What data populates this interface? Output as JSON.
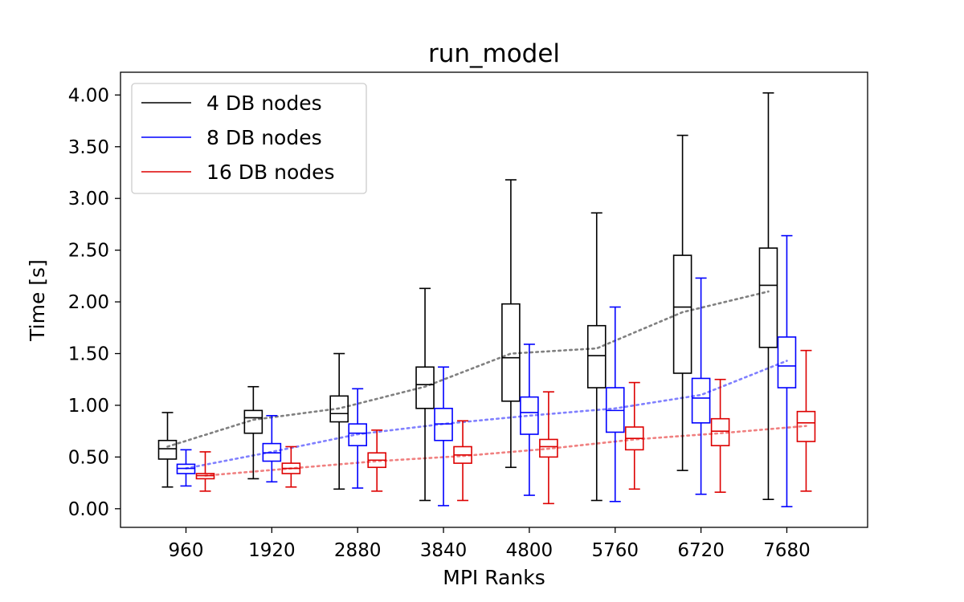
{
  "chart_data": {
    "type": "box",
    "title": "run_model",
    "xlabel": "MPI Ranks",
    "ylabel": "Time [s]",
    "categories": [
      "960",
      "1920",
      "2880",
      "3840",
      "4800",
      "5760",
      "6720",
      "7680"
    ],
    "ylim": [
      -0.18,
      4.22
    ],
    "yticks": [
      0.0,
      0.5,
      1.0,
      1.5,
      2.0,
      2.5,
      3.0,
      3.5,
      4.0
    ],
    "ytick_labels": [
      "0.00",
      "0.50",
      "1.00",
      "1.50",
      "2.00",
      "2.50",
      "3.00",
      "3.50",
      "4.00"
    ],
    "legend_position": "top-left",
    "grid": false,
    "series": [
      {
        "name": "4 DB nodes",
        "color": "#000000",
        "mean_color": "#808080",
        "boxes": [
          {
            "whislo": 0.21,
            "q1": 0.48,
            "med": 0.58,
            "q3": 0.66,
            "whishi": 0.93,
            "mean": 0.6
          },
          {
            "whislo": 0.29,
            "q1": 0.73,
            "med": 0.88,
            "q3": 0.95,
            "whishi": 1.18,
            "mean": 0.86
          },
          {
            "whislo": 0.19,
            "q1": 0.84,
            "med": 0.92,
            "q3": 1.09,
            "whishi": 1.5,
            "mean": 0.97
          },
          {
            "whislo": 0.08,
            "q1": 0.97,
            "med": 1.2,
            "q3": 1.37,
            "whishi": 2.13,
            "mean": 1.18
          },
          {
            "whislo": 0.4,
            "q1": 1.04,
            "med": 1.46,
            "q3": 1.98,
            "whishi": 3.18,
            "mean": 1.5
          },
          {
            "whislo": 0.08,
            "q1": 1.17,
            "med": 1.48,
            "q3": 1.77,
            "whishi": 2.86,
            "mean": 1.55
          },
          {
            "whislo": 0.37,
            "q1": 1.31,
            "med": 1.95,
            "q3": 2.45,
            "whishi": 3.61,
            "mean": 1.9
          },
          {
            "whislo": 0.09,
            "q1": 1.56,
            "med": 2.16,
            "q3": 2.52,
            "whishi": 4.02,
            "mean": 2.1
          }
        ]
      },
      {
        "name": "8 DB nodes",
        "color": "#0000ff",
        "mean_color": "#8080ff",
        "boxes": [
          {
            "whislo": 0.22,
            "q1": 0.34,
            "med": 0.39,
            "q3": 0.43,
            "whishi": 0.57,
            "mean": 0.39
          },
          {
            "whislo": 0.26,
            "q1": 0.46,
            "med": 0.54,
            "q3": 0.63,
            "whishi": 0.9,
            "mean": 0.55
          },
          {
            "whislo": 0.2,
            "q1": 0.61,
            "med": 0.73,
            "q3": 0.82,
            "whishi": 1.16,
            "mean": 0.72
          },
          {
            "whislo": 0.03,
            "q1": 0.66,
            "med": 0.82,
            "q3": 0.97,
            "whishi": 1.37,
            "mean": 0.82
          },
          {
            "whislo": 0.13,
            "q1": 0.72,
            "med": 0.93,
            "q3": 1.08,
            "whishi": 1.59,
            "mean": 0.9
          },
          {
            "whislo": 0.07,
            "q1": 0.74,
            "med": 0.95,
            "q3": 1.17,
            "whishi": 1.95,
            "mean": 0.97
          },
          {
            "whislo": 0.14,
            "q1": 0.83,
            "med": 1.07,
            "q3": 1.26,
            "whishi": 2.23,
            "mean": 1.1
          },
          {
            "whislo": 0.02,
            "q1": 1.17,
            "med": 1.38,
            "q3": 1.66,
            "whishi": 2.64,
            "mean": 1.43
          }
        ]
      },
      {
        "name": "16 DB nodes",
        "color": "#dd0000",
        "mean_color": "#f08080",
        "boxes": [
          {
            "whislo": 0.17,
            "q1": 0.29,
            "med": 0.32,
            "q3": 0.34,
            "whishi": 0.55,
            "mean": 0.32
          },
          {
            "whislo": 0.21,
            "q1": 0.34,
            "med": 0.39,
            "q3": 0.44,
            "whishi": 0.6,
            "mean": 0.39
          },
          {
            "whislo": 0.17,
            "q1": 0.4,
            "med": 0.47,
            "q3": 0.54,
            "whishi": 0.76,
            "mean": 0.46
          },
          {
            "whislo": 0.08,
            "q1": 0.44,
            "med": 0.52,
            "q3": 0.6,
            "whishi": 0.85,
            "mean": 0.51
          },
          {
            "whislo": 0.05,
            "q1": 0.5,
            "med": 0.6,
            "q3": 0.67,
            "whishi": 1.13,
            "mean": 0.58
          },
          {
            "whislo": 0.19,
            "q1": 0.57,
            "med": 0.68,
            "q3": 0.79,
            "whishi": 1.22,
            "mean": 0.67
          },
          {
            "whislo": 0.16,
            "q1": 0.61,
            "med": 0.75,
            "q3": 0.87,
            "whishi": 1.25,
            "mean": 0.73
          },
          {
            "whislo": 0.17,
            "q1": 0.65,
            "med": 0.83,
            "q3": 0.94,
            "whishi": 1.53,
            "mean": 0.8
          }
        ]
      }
    ]
  }
}
